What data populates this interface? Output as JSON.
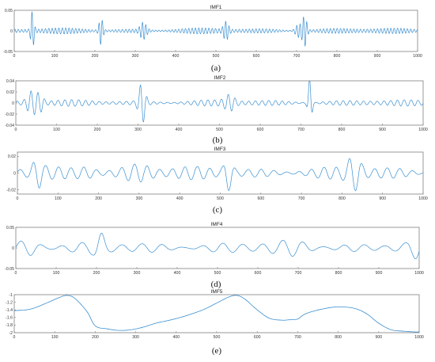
{
  "chart_data": [
    {
      "type": "line",
      "title": "IMF1",
      "caption": "(a)",
      "xlim": [
        0,
        1000
      ],
      "ylim": [
        -0.05,
        0.05
      ],
      "x_ticks": [
        0,
        100,
        200,
        300,
        400,
        500,
        600,
        700,
        800,
        900,
        1000
      ],
      "y_ticks": [
        -0.05,
        0,
        0.05
      ],
      "y_tick_labels": [
        "-0.05",
        "0",
        "0.05"
      ],
      "line_color": "#3a8fd0",
      "series": [
        {
          "x": [
            0,
            1000
          ],
          "y": [
            -0.008,
            0.008
          ],
          "note_samples": 1000
        }
      ]
    },
    {
      "type": "line",
      "title": "IMF2",
      "caption": "(b)",
      "xlim": [
        0,
        1000
      ],
      "ylim": [
        -0.04,
        0.04
      ],
      "x_ticks": [
        0,
        100,
        200,
        300,
        400,
        500,
        600,
        700,
        800,
        900,
        1000
      ],
      "y_ticks": [
        -0.04,
        -0.02,
        0,
        0.02,
        0.04
      ],
      "y_tick_labels": [
        "-0.04",
        "-0.02",
        "0",
        "0.02",
        "0.04"
      ],
      "line_color": "#3a8fd0"
    },
    {
      "type": "line",
      "title": "IMF3",
      "caption": "(c)",
      "xlim": [
        0,
        1000
      ],
      "ylim": [
        -0.025,
        0.025
      ],
      "x_ticks": [
        0,
        100,
        200,
        300,
        400,
        500,
        600,
        700,
        800,
        900,
        1000
      ],
      "y_ticks": [
        -0.02,
        0,
        0.02
      ],
      "y_tick_labels": [
        "-0.02",
        "0",
        "0.02"
      ],
      "line_color": "#3a8fd0"
    },
    {
      "type": "line",
      "title": "IMF4",
      "caption": "(d)",
      "xlim": [
        0,
        1000
      ],
      "ylim": [
        -0.05,
        0.05
      ],
      "x_ticks": [
        0,
        100,
        200,
        300,
        400,
        500,
        600,
        700,
        800,
        900,
        1000
      ],
      "y_ticks": [
        -0.05,
        0,
        0.05
      ],
      "y_tick_labels": [
        "-0.05",
        "0",
        "0.05"
      ],
      "line_color": "#3a8fd0"
    },
    {
      "type": "line",
      "title": "IMF5",
      "caption": "(e)",
      "xlim": [
        0,
        1000
      ],
      "ylim": [
        -2,
        -1
      ],
      "x_ticks": [
        0,
        100,
        200,
        300,
        400,
        500,
        600,
        700,
        800,
        900,
        1000
      ],
      "y_ticks": [
        -2,
        -1.8,
        -1.6,
        -1.4,
        -1.2,
        -1
      ],
      "y_tick_labels": [
        "-2",
        "-1.8",
        "-1.6",
        "-1.4",
        "-1.2",
        "-1"
      ],
      "line_color": "#3a8fd0",
      "series": [
        {
          "x": [
            0,
            40,
            80,
            110,
            130,
            150,
            180,
            200,
            230,
            260,
            290,
            320,
            350,
            380,
            410,
            440,
            470,
            500,
            530,
            550,
            570,
            600,
            630,
            660,
            680,
            700,
            720,
            760,
            800,
            840,
            870,
            900,
            930,
            960,
            990,
            1000
          ],
          "y": [
            -1.42,
            -1.38,
            -1.22,
            -1.08,
            -1.02,
            -1.1,
            -1.45,
            -1.82,
            -1.9,
            -1.94,
            -1.92,
            -1.85,
            -1.75,
            -1.68,
            -1.6,
            -1.5,
            -1.38,
            -1.22,
            -1.06,
            -1.02,
            -1.12,
            -1.4,
            -1.62,
            -1.67,
            -1.66,
            -1.64,
            -1.5,
            -1.38,
            -1.32,
            -1.36,
            -1.5,
            -1.75,
            -1.92,
            -1.96,
            -1.98,
            -1.98
          ]
        }
      ]
    }
  ]
}
